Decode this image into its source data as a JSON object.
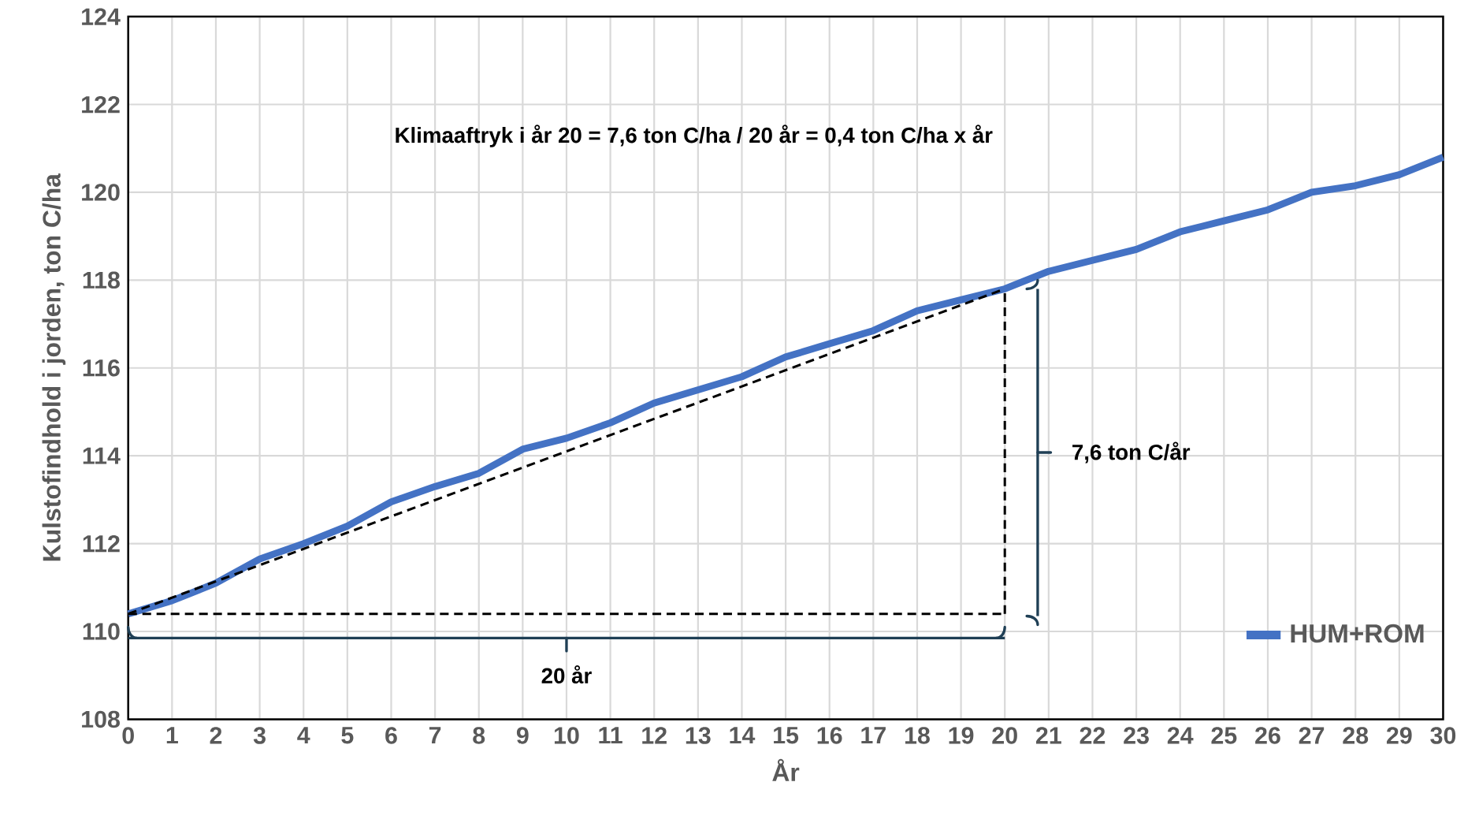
{
  "chart_data": {
    "type": "line",
    "xlabel": "År",
    "ylabel": "Kulstofindhold i jorden, ton C/ha",
    "x": [
      0,
      1,
      2,
      3,
      4,
      5,
      6,
      7,
      8,
      9,
      10,
      11,
      12,
      13,
      14,
      15,
      16,
      17,
      18,
      19,
      20,
      21,
      22,
      23,
      24,
      25,
      26,
      27,
      28,
      29,
      30
    ],
    "series": [
      {
        "name": "HUM+ROM",
        "color": "#4472c4",
        "values": [
          110.4,
          110.7,
          111.1,
          111.65,
          112.0,
          112.4,
          112.95,
          113.3,
          113.6,
          114.15,
          114.4,
          114.75,
          115.2,
          115.5,
          115.8,
          116.25,
          116.55,
          116.85,
          117.3,
          117.55,
          117.8,
          118.2,
          118.45,
          118.7,
          119.1,
          119.35,
          119.6,
          120.0,
          120.15,
          120.4,
          120.8
        ]
      },
      {
        "type": "line",
        "x": [
          0,
          20
        ],
        "values": [
          110.4,
          117.8
        ],
        "color": "#000000",
        "line_style": "dashed"
      },
      {
        "type": "line",
        "x": [
          0,
          20
        ],
        "values": [
          110.4,
          110.4
        ],
        "color": "#000000",
        "line_style": "dashed"
      },
      {
        "type": "line",
        "x": [
          20,
          20
        ],
        "values": [
          110.4,
          117.8
        ],
        "color": "#000000",
        "line_style": "dashed"
      },
      {
        "type": "line",
        "x": [
          0,
          20
        ],
        "values": [
          109.85,
          109.85
        ],
        "color": "#1f3f55"
      },
      {
        "type": "line",
        "x": [
          20.75,
          20.75
        ],
        "values": [
          117.8,
          110.35
        ],
        "color": "#1f3f55"
      }
    ],
    "annotations": [
      "Klimaaftryk i år 20 = 7,6 ton C/ha / 20 år = 0,4 ton C/ha x år",
      "7,6 ton C/år",
      "20 år"
    ],
    "xlim": [
      0,
      30
    ],
    "ylim": [
      108,
      124
    ],
    "xticks": [
      0,
      1,
      2,
      3,
      4,
      5,
      6,
      7,
      8,
      9,
      10,
      11,
      12,
      13,
      14,
      15,
      16,
      17,
      18,
      19,
      20,
      21,
      22,
      23,
      24,
      25,
      26,
      27,
      28,
      29,
      30
    ],
    "yticks": [
      108,
      110,
      112,
      114,
      116,
      118,
      120,
      122,
      124
    ],
    "grid": true,
    "legend": "bottom right"
  }
}
